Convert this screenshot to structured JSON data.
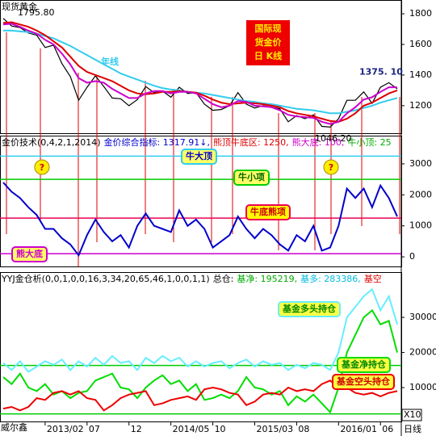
{
  "chart_data": [
    {
      "type": "line",
      "title": "现货黄金",
      "title_box": [
        "国际现",
        "货金价",
        "日 K线"
      ],
      "ylim": [
        1020,
        1890
      ],
      "yticks": [
        1200,
        1400,
        1600,
        1800
      ],
      "series": [
        {
          "color": "#000000",
          "values": [
            1770,
            1720,
            1710,
            1675,
            1660,
            1580,
            1595,
            1475,
            1390,
            1235,
            1320,
            1395,
            1325,
            1250,
            1245,
            1200,
            1240,
            1325,
            1285,
            1295,
            1255,
            1320,
            1280,
            1285,
            1210,
            1170,
            1175,
            1200,
            1285,
            1210,
            1185,
            1200,
            1190,
            1180,
            1095,
            1135,
            1115,
            1140,
            1065,
            1060,
            1115,
            1235,
            1235,
            1290,
            1215,
            1320,
            1350,
            1310
          ]
        },
        {
          "name": "年线",
          "color": "#33ccee",
          "values": [
            1690,
            1690,
            1685,
            1680,
            1670,
            1655,
            1640,
            1615,
            1590,
            1560,
            1530,
            1500,
            1470,
            1440,
            1410,
            1390,
            1370,
            1350,
            1330,
            1315,
            1305,
            1300,
            1290,
            1285,
            1280,
            1270,
            1260,
            1250,
            1240,
            1230,
            1225,
            1215,
            1210,
            1200,
            1190,
            1180,
            1175,
            1170,
            1160,
            1150,
            1150,
            1160,
            1170,
            1185,
            1200,
            1220,
            1235,
            1250
          ]
        },
        {
          "color": "#dd0000",
          "values": [
            1740,
            1745,
            1730,
            1715,
            1690,
            1660,
            1620,
            1580,
            1520,
            1460,
            1420,
            1400,
            1380,
            1360,
            1330,
            1300,
            1280,
            1275,
            1280,
            1290,
            1290,
            1295,
            1290,
            1285,
            1265,
            1240,
            1220,
            1210,
            1215,
            1220,
            1215,
            1210,
            1200,
            1190,
            1165,
            1150,
            1140,
            1130,
            1115,
            1100,
            1095,
            1115,
            1150,
            1200,
            1220,
            1250,
            1280,
            1300
          ]
        },
        {
          "color": "#cc00cc",
          "values": [
            1730,
            1735,
            1715,
            1690,
            1670,
            1630,
            1600,
            1540,
            1470,
            1380,
            1350,
            1360,
            1350,
            1310,
            1280,
            1250,
            1250,
            1280,
            1295,
            1295,
            1280,
            1290,
            1290,
            1280,
            1245,
            1210,
            1190,
            1200,
            1230,
            1225,
            1200,
            1195,
            1190,
            1170,
            1140,
            1130,
            1125,
            1120,
            1095,
            1080,
            1095,
            1150,
            1190,
            1240,
            1255,
            1290,
            1320,
            1320
          ]
        }
      ],
      "annotations": [
        {
          "value": 1795.8,
          "label": "1795.80"
        },
        {
          "value": 1375.1,
          "label": "1375. 10"
        },
        {
          "value": 1046.2,
          "label": "1046.20"
        }
      ]
    },
    {
      "type": "line",
      "header": [
        {
          "text": "金价技术(0,4,2,1,2014)",
          "color": "#000000"
        },
        {
          "text": "金价综合指标: 1317.91↓,",
          "color": "#0000cc"
        },
        {
          "text": "熊顶牛底区: 1250,",
          "color": "#dd0000"
        },
        {
          "text": "熊大底: 100,",
          "color": "#cc00cc"
        },
        {
          "text": "牛小顶: 25",
          "color": "#00aa00"
        }
      ],
      "ylim": [
        -310,
        3910
      ],
      "yticks": [
        0,
        1000,
        2000,
        3000
      ],
      "levels": [
        {
          "value": 3250,
          "color": "#33ccee",
          "label": "牛大顶"
        },
        {
          "value": 2500,
          "color": "#00cc00",
          "label": "牛小项"
        },
        {
          "value": 1250,
          "color": "#ee0055",
          "label": "牛底熊项"
        },
        {
          "value": 100,
          "color": "#cc00cc",
          "label": "熊大底"
        }
      ],
      "markers": [
        "?",
        "?"
      ],
      "series": [
        {
          "color": "#0000cc",
          "values": [
            2400,
            2100,
            1900,
            1600,
            1350,
            900,
            900,
            600,
            400,
            50,
            700,
            1200,
            800,
            500,
            700,
            300,
            1000,
            1400,
            1000,
            900,
            800,
            1500,
            1000,
            1200,
            900,
            300,
            500,
            700,
            1300,
            900,
            600,
            900,
            700,
            400,
            200,
            700,
            500,
            1000,
            200,
            300,
            1000,
            2200,
            1900,
            2200,
            1600,
            2300,
            1900,
            1300
          ]
        }
      ]
    },
    {
      "type": "line",
      "header": [
        {
          "text": "YYJ金仓析(0,0,1,0,0,16,3,34,20,65,46,1,0,0,1,1)",
          "color": "#000000"
        },
        {
          "text": "总仓:",
          "color": "#000000"
        },
        {
          "text": "基净: 195219,",
          "color": "#00aa00"
        },
        {
          "text": "基多: 283386,",
          "color": "#00bbdd"
        },
        {
          "text": "基空",
          "color": "#dd0000"
        }
      ],
      "ylim": [
        350,
        42900
      ],
      "yticks": [
        10000,
        20000,
        30000
      ],
      "levels": [
        {
          "value": 16300,
          "color": "#00cc00"
        },
        {
          "value": 2500,
          "color": "#00cc00"
        }
      ],
      "series": [
        {
          "name": "基金多头持仓",
          "color": "#66eeff",
          "values": [
            17000,
            15000,
            17500,
            14500,
            16000,
            17500,
            16500,
            18000,
            15000,
            17500,
            16000,
            18500,
            16500,
            19000,
            17000,
            17500,
            15000,
            18500,
            17000,
            19000,
            17500,
            18500,
            16000,
            17500,
            16000,
            17000,
            17500,
            15500,
            17000,
            18000,
            16000,
            17500,
            16500,
            17000,
            15000,
            16500,
            15500,
            17000,
            16500,
            15000,
            20000,
            30000,
            33000,
            36000,
            38000,
            32000,
            36000,
            28000
          ]
        },
        {
          "name": "基金净持仓",
          "color": "#00dd00",
          "values": [
            13000,
            11000,
            14000,
            10000,
            9000,
            11000,
            8000,
            9000,
            7000,
            8500,
            9000,
            12000,
            13000,
            14000,
            10000,
            9500,
            7000,
            10000,
            12000,
            13500,
            11000,
            12000,
            9000,
            11000,
            6500,
            7000,
            8000,
            7000,
            9000,
            13000,
            10000,
            9500,
            8000,
            9000,
            5000,
            7500,
            6000,
            8000,
            5500,
            3000,
            10000,
            20000,
            25000,
            30000,
            32000,
            28000,
            29000,
            20000
          ]
        },
        {
          "name": "基金空头持仓",
          "color": "#ee0000",
          "values": [
            4000,
            4500,
            3500,
            4500,
            7000,
            6500,
            8500,
            9000,
            8000,
            9000,
            7000,
            6500,
            3500,
            5000,
            7000,
            8000,
            8500,
            9000,
            5000,
            5500,
            6500,
            7000,
            7500,
            6500,
            9500,
            10000,
            9500,
            8500,
            8000,
            5000,
            6000,
            8000,
            8500,
            8000,
            10000,
            9000,
            9500,
            9000,
            11000,
            12000,
            10000,
            10000,
            8500,
            8000,
            8500,
            7500,
            8500,
            9000
          ]
        }
      ],
      "categories": [
        null,
        null,
        null,
        null,
        null,
        "2013/02",
        null,
        null,
        null,
        null,
        "07",
        null,
        null,
        null,
        null,
        "12",
        null,
        null,
        null,
        null,
        "2014/05",
        null,
        null,
        null,
        null,
        "10",
        null,
        null,
        null,
        null,
        "2015/03",
        null,
        null,
        null,
        null,
        "08",
        null,
        null,
        null,
        null,
        "2016/01",
        null,
        null,
        null,
        null,
        "06",
        null,
        null
      ],
      "footer": {
        "left": "威尔鑫",
        "right": "日线",
        "scale": "X10"
      }
    }
  ]
}
